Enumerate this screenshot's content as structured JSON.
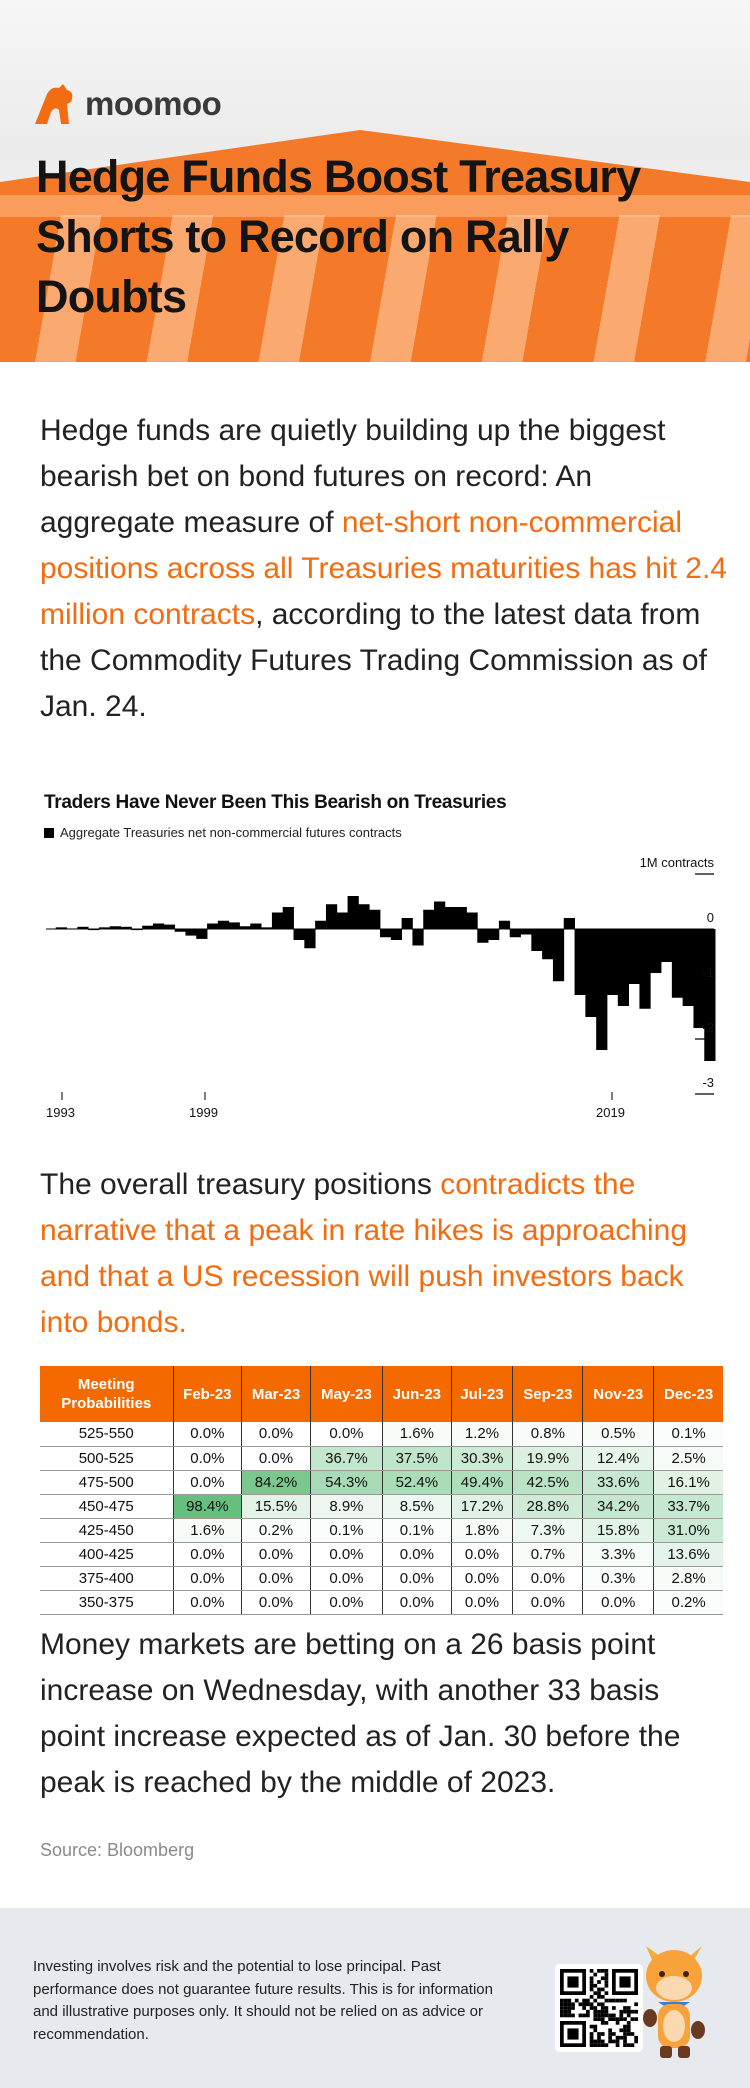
{
  "brand": {
    "name": "moomoo",
    "accent": "#f26c12"
  },
  "hero": {
    "title": "Hedge Funds Boost Treasury Shorts to Record on Rally Doubts"
  },
  "intro": {
    "before": "Hedge funds are quietly building up the biggest bearish bet on bond futures on record: An aggregate measure of ",
    "highlight": "net-short non-commercial positions across all Treasuries maturities has hit 2.4 million contracts",
    "after": ", according to the latest data from the Commodity Futures Trading Commission as of Jan. 24."
  },
  "chart_data": {
    "type": "area",
    "title": "Traders Have Never Been This Bearish on Treasuries",
    "legend": "Aggregate Treasuries net non-commercial futures contracts",
    "unit_label": "1M contracts",
    "y_ticks": [
      "1M contracts",
      "0",
      "-1",
      "-2",
      "-3"
    ],
    "y_tick_values": [
      1,
      0,
      -1,
      -2,
      -3
    ],
    "ylim": [
      -3,
      1
    ],
    "x_ticks": [
      "1993",
      "1999",
      "2019"
    ],
    "x_tick_values": [
      1993,
      1999,
      2019
    ],
    "xlim": [
      1992.3,
      2023.2
    ],
    "x": [
      1993.0,
      1993.5,
      1994.0,
      1994.5,
      1995.0,
      1995.5,
      1996.0,
      1996.5,
      1997.0,
      1997.5,
      1998.0,
      1998.5,
      1999.0,
      1999.5,
      2000.0,
      2000.5,
      2001.0,
      2001.5,
      2002.0,
      2002.5,
      2003.0,
      2003.5,
      2004.0,
      2004.5,
      2005.0,
      2005.5,
      2006.0,
      2006.5,
      2007.0,
      2007.5,
      2008.0,
      2008.5,
      2009.0,
      2009.5,
      2010.0,
      2010.5,
      2011.0,
      2011.5,
      2012.0,
      2012.5,
      2013.0,
      2013.5,
      2014.0,
      2014.5,
      2015.0,
      2015.5,
      2016.0,
      2016.5,
      2017.0,
      2017.5,
      2018.0,
      2018.5,
      2019.0,
      2019.5,
      2020.0,
      2020.5,
      2021.0,
      2021.5,
      2022.0,
      2022.5,
      2023.0
    ],
    "values": [
      0.03,
      0.01,
      0.04,
      -0.02,
      0.03,
      0.05,
      0.04,
      -0.02,
      0.06,
      0.1,
      0.08,
      -0.05,
      -0.12,
      -0.18,
      0.1,
      0.15,
      0.12,
      0.05,
      0.1,
      0.03,
      0.3,
      0.4,
      -0.2,
      -0.35,
      0.15,
      0.45,
      0.3,
      0.6,
      0.45,
      0.35,
      -0.15,
      -0.2,
      0.2,
      -0.3,
      0.35,
      0.5,
      0.4,
      0.4,
      0.3,
      -0.25,
      -0.2,
      0.15,
      -0.15,
      -0.1,
      -0.4,
      -0.55,
      -0.95,
      0.2,
      -1.2,
      -1.6,
      -2.2,
      -1.2,
      -1.4,
      -1.0,
      -1.45,
      -0.8,
      -0.6,
      -1.25,
      -1.4,
      -1.8,
      -2.4
    ],
    "grid": false
  },
  "paragraph2": {
    "before": "The overall treasury positions ",
    "highlight": "contradicts the narrative that a peak in rate hikes is approaching and that a US recession will push investors back into bonds."
  },
  "table": {
    "corner": "Meeting Probabilities",
    "columns": [
      "Feb-23",
      "Mar-23",
      "May-23",
      "Jun-23",
      "Jul-23",
      "Sep-23",
      "Nov-23",
      "Dec-23"
    ],
    "rows": [
      {
        "range": "525-550",
        "cells": [
          "0.0%",
          "0.0%",
          "0.0%",
          "1.6%",
          "1.2%",
          "0.8%",
          "0.5%",
          "0.1%"
        ]
      },
      {
        "range": "500-525",
        "cells": [
          "0.0%",
          "0.0%",
          "36.7%",
          "37.5%",
          "30.3%",
          "19.9%",
          "12.4%",
          "2.5%"
        ]
      },
      {
        "range": "475-500",
        "cells": [
          "0.0%",
          "84.2%",
          "54.3%",
          "52.4%",
          "49.4%",
          "42.5%",
          "33.6%",
          "16.1%"
        ]
      },
      {
        "range": "450-475",
        "cells": [
          "98.4%",
          "15.5%",
          "8.9%",
          "8.5%",
          "17.2%",
          "28.8%",
          "34.2%",
          "33.7%"
        ]
      },
      {
        "range": "425-450",
        "cells": [
          "1.6%",
          "0.2%",
          "0.1%",
          "0.1%",
          "1.8%",
          "7.3%",
          "15.8%",
          "31.0%"
        ]
      },
      {
        "range": "400-425",
        "cells": [
          "0.0%",
          "0.0%",
          "0.0%",
          "0.0%",
          "0.0%",
          "0.7%",
          "3.3%",
          "13.6%"
        ]
      },
      {
        "range": "375-400",
        "cells": [
          "0.0%",
          "0.0%",
          "0.0%",
          "0.0%",
          "0.0%",
          "0.0%",
          "0.3%",
          "2.8%"
        ]
      },
      {
        "range": "350-375",
        "cells": [
          "0.0%",
          "0.0%",
          "0.0%",
          "0.0%",
          "0.0%",
          "0.0%",
          "0.0%",
          "0.2%"
        ]
      }
    ]
  },
  "paragraph3": "Money markets are betting on a 26 basis point increase on Wednesday, with another 33 basis point increase expected as of Jan. 30 before the peak is reached by the middle of 2023.",
  "source": "Source: Bloomberg",
  "footer": {
    "disclaimer": "Investing involves risk and the potential to lose principal. Past performance does not guarantee future results. This is for information and illustrative purposes only. It should not be relied on as advice or recommendation."
  }
}
